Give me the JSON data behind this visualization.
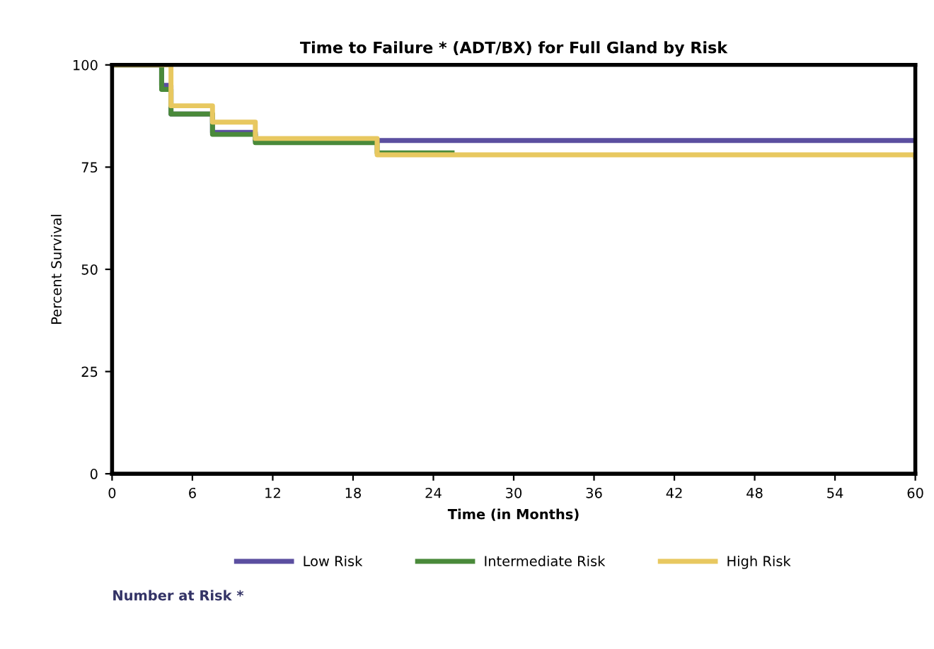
{
  "chart_data": {
    "type": "step",
    "title": "Time to Failure * (ADT/BX) for Full Gland by Risk",
    "xlabel": "Time (in Months)",
    "ylabel": "Percent Survival",
    "series": [
      {
        "name": "Low Risk",
        "color": "#5b4fa0",
        "x": [
          0,
          3.7,
          4.4,
          7.5,
          10.7,
          60
        ],
        "values": [
          100,
          95,
          88,
          83.5,
          81.5,
          81.5
        ]
      },
      {
        "name": "Intermediate Risk",
        "color": "#4a8a3a",
        "x": [
          0,
          3.7,
          4.4,
          7.5,
          10.7,
          19.8,
          25.4
        ],
        "values": [
          100,
          94,
          88,
          83,
          81,
          78.5,
          78.5
        ]
      },
      {
        "name": "High Risk",
        "color": "#e8c860",
        "x": [
          0,
          4.4,
          7.5,
          10.7,
          19.8,
          60
        ],
        "values": [
          100,
          90,
          86,
          82,
          78,
          77.5
        ]
      }
    ],
    "xlim": [
      0,
      60
    ],
    "xticks": [
      0,
      6,
      12,
      18,
      24,
      30,
      36,
      42,
      48,
      54,
      60
    ],
    "ylim": [
      0,
      100
    ],
    "yticks": [
      0,
      25,
      50,
      75,
      100
    ],
    "grid": false,
    "legend": "bottom",
    "line_style": "solid",
    "marker": "none",
    "annotations": [
      "Number at Risk *"
    ]
  }
}
